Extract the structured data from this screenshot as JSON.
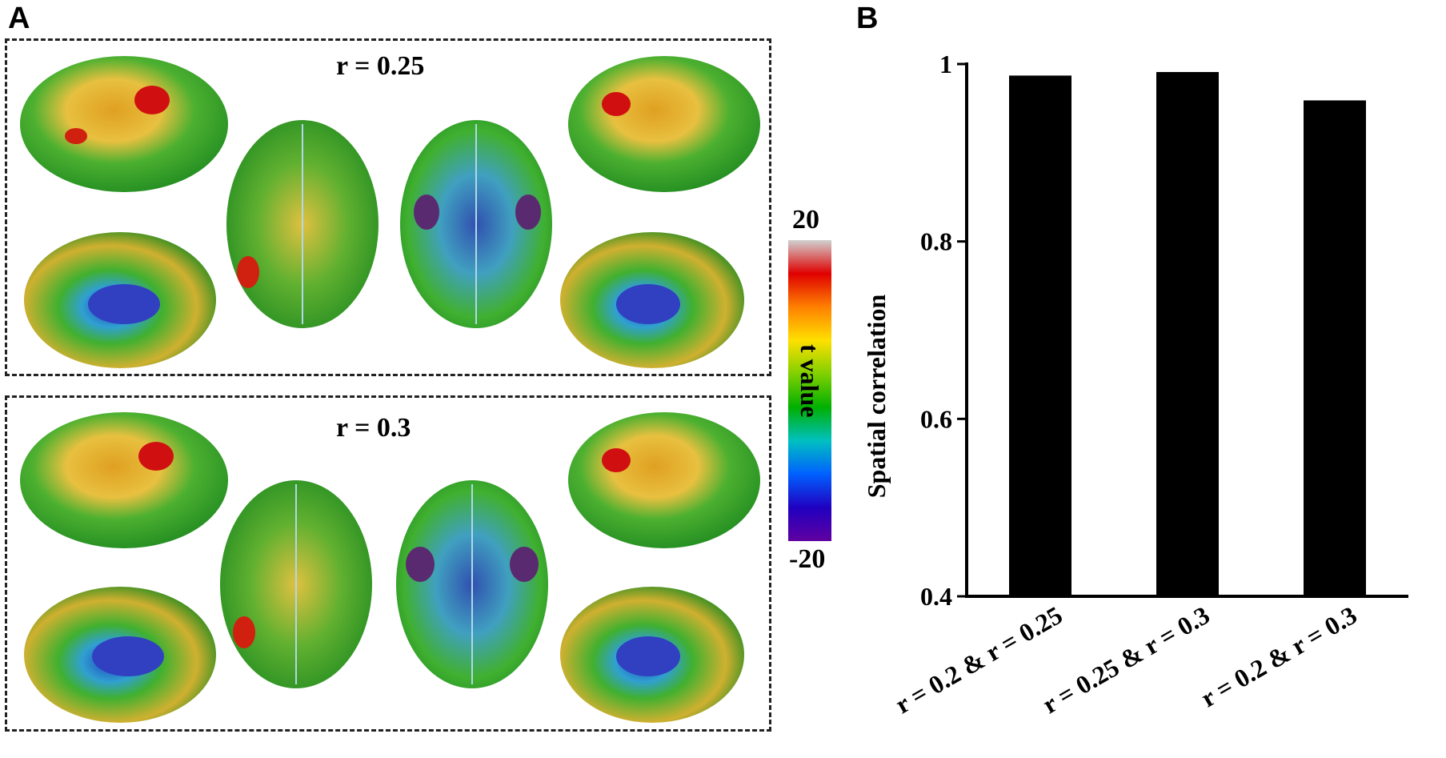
{
  "panel_a": {
    "label": "A",
    "maps": [
      {
        "title": "r = 0.25"
      },
      {
        "title": "r = 0.3"
      }
    ],
    "colorbar": {
      "title": "t value",
      "max_label": "20",
      "min_label": "-20",
      "stops": [
        "#d0d0d0",
        "#e00000",
        "#ff8000",
        "#ffe000",
        "#80d000",
        "#00b000",
        "#00c0c0",
        "#0060ff",
        "#2000c0",
        "#6000a0"
      ]
    }
  },
  "panel_b": {
    "label": "B"
  },
  "chart_data": {
    "type": "bar",
    "categories": [
      "r = 0.2 & r = 0.25",
      "r = 0.25 & r = 0.3",
      "r = 0.2 & r = 0.3"
    ],
    "values": [
      0.987,
      0.991,
      0.959
    ],
    "ylabel": "Spatial correlation",
    "ylim": [
      0.4,
      1
    ],
    "yticks": [
      "0.4",
      "0.6",
      "0.8",
      "1"
    ],
    "bar_color": "#000000",
    "grid": false
  }
}
